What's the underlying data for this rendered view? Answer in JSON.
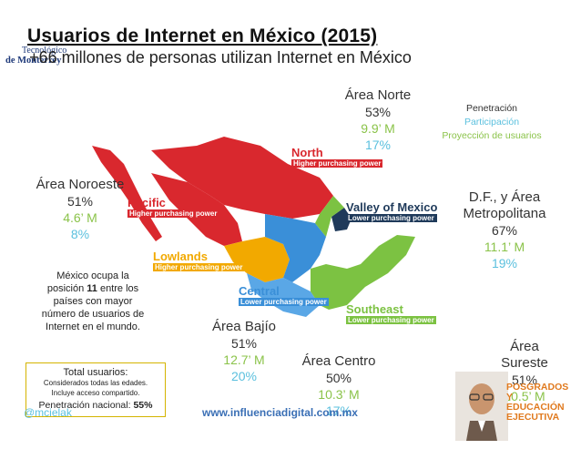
{
  "header": {
    "title": "Usuarios de Internet en México (2015)",
    "subtitle": "+66 millones de personas utilizan Internet en México"
  },
  "logo": {
    "line1": "Tecnológico",
    "line2": "de Monterrey"
  },
  "legend": {
    "penetration": "Penetración",
    "participation": "Participación",
    "projection": "Proyección de usuarios"
  },
  "areas": {
    "norte": {
      "name": "Área Norte",
      "penetration": "53%",
      "users": "9.9’ M",
      "projection": "17%"
    },
    "noroeste": {
      "name": "Área Noroeste",
      "penetration": "51%",
      "users": "4.6’ M",
      "projection": "8%"
    },
    "df": {
      "name": "D.F., y Área Metropolitana",
      "penetration": "67%",
      "users": "11.1’ M",
      "projection": "19%"
    },
    "bajio": {
      "name": "Área Bajío",
      "penetration": "51%",
      "users": "12.7’ M",
      "projection": "20%"
    },
    "centro": {
      "name": "Área Centro",
      "penetration": "50%",
      "users": "10.3’ M",
      "projection": "17%"
    },
    "sureste": {
      "name": "Área Sureste",
      "penetration": "51%",
      "users": "10.5’ M"
    }
  },
  "map_regions": {
    "north": {
      "name": "North",
      "power": "Higher purchasing power",
      "color": "#d9282e"
    },
    "pacific": {
      "name": "Pacific",
      "power": "Higher purchasing power",
      "color": "#d9282e"
    },
    "valley": {
      "name": "Valley of Mexico",
      "power": "Lower purchasing power",
      "color": "#1f3a5a"
    },
    "lowlands": {
      "name": "Lowlands",
      "power": "Higher purchasing power",
      "color": "#f2a900"
    },
    "central": {
      "name": "Central",
      "power": "Lower purchasing power",
      "color": "#3a8fd8"
    },
    "southeast": {
      "name": "Southeast",
      "power": "Lower purchasing power",
      "color": "#7cc242"
    }
  },
  "note": {
    "line1": "México ocupa la posición",
    "position": "11",
    "line2": "entre los países con mayor número de usuarios de Internet en el mundo."
  },
  "totals": {
    "title": "Total usuarios:",
    "detail1": "Considerados todas las edades.",
    "detail2": "Incluye acceso compartido.",
    "penetration_label": "Penetración nacional:",
    "penetration_value": "55%"
  },
  "footer": {
    "handle": "@mcielak",
    "site": "www.influenciadigital.com.mx"
  },
  "badge": {
    "line1": "POSGRADOS",
    "line2": "Y EDUCACIÓN",
    "line3": "EJECUTIVA"
  }
}
